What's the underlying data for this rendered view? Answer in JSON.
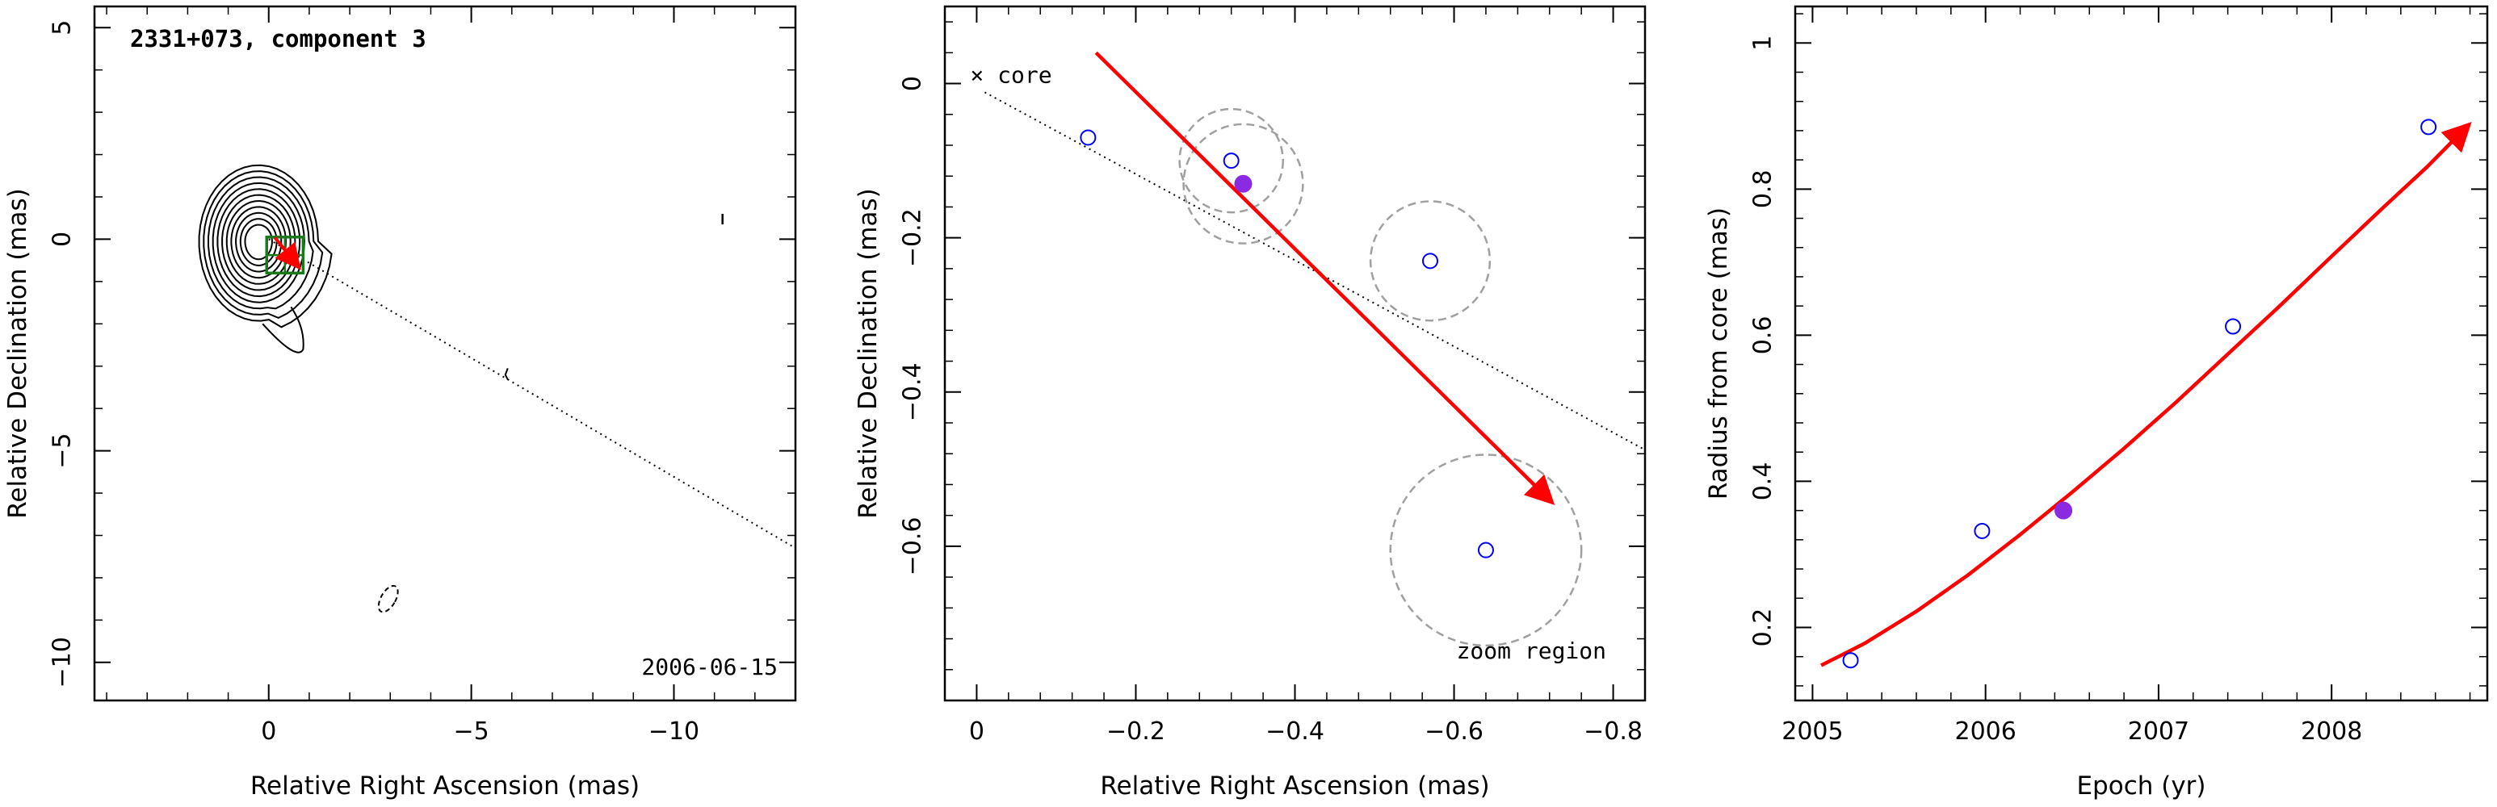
{
  "chart_data": [
    {
      "type": "contour",
      "title": "2331+073, component 3",
      "date_label": "2006-06-15",
      "xlabel": "Relative Right Ascension (mas)",
      "ylabel": "Relative Declination (mas)",
      "xlim": [
        4.3,
        -13.0
      ],
      "ylim": [
        -10.9,
        5.5
      ],
      "xticks": [
        0,
        -5,
        -10
      ],
      "xtick_labels": [
        "0",
        "−5",
        "−10"
      ],
      "yticks": [
        5,
        0,
        -5,
        -10
      ],
      "ytick_labels": [
        "5",
        "0",
        "−5",
        "−10"
      ],
      "contour_center": [
        0.25,
        -0.05
      ],
      "contour_levels": 11,
      "zoom_box": {
        "x": [
          0.05,
          -0.85
        ],
        "y": [
          0.05,
          -0.8
        ]
      },
      "jet_direction_line": {
        "from": [
          0.0,
          0.0
        ],
        "to": [
          -13.0,
          -7.3
        ]
      },
      "motion_arrow": {
        "from": [
          -0.15,
          0.04
        ],
        "to": [
          -0.7,
          -0.61
        ]
      },
      "colors": {
        "contour": "#000000",
        "zoom_box": "#1a7a1a",
        "arrow": "#ff0000"
      }
    },
    {
      "type": "scatter",
      "annotations": {
        "core": "× core",
        "zoom": "zoom region"
      },
      "xlabel": "Relative Right Ascension (mas)",
      "ylabel": "Relative Declination (mas)",
      "xlim": [
        0.04,
        -0.84
      ],
      "ylim": [
        -0.8,
        0.1
      ],
      "xticks": [
        0,
        -0.2,
        -0.4,
        -0.6,
        -0.8
      ],
      "xtick_labels": [
        "0",
        "−0.2",
        "−0.4",
        "−0.6",
        "−0.8"
      ],
      "yticks": [
        0,
        -0.2,
        -0.4,
        -0.6
      ],
      "ytick_labels": [
        "0",
        "−0.2",
        "−0.4",
        "−0.6"
      ],
      "points": [
        {
          "x": -0.14,
          "y": -0.07,
          "filled": false,
          "error_radius": null
        },
        {
          "x": -0.32,
          "y": -0.1,
          "filled": false,
          "error_radius": 0.065
        },
        {
          "x": -0.335,
          "y": -0.13,
          "filled": true,
          "error_radius": 0.075
        },
        {
          "x": -0.57,
          "y": -0.23,
          "filled": false,
          "error_radius": 0.075
        },
        {
          "x": -0.64,
          "y": -0.605,
          "filled": false,
          "error_radius": 0.12
        }
      ],
      "core_marker": {
        "x": 0.0,
        "y": -0.005
      },
      "jet_direction_line": {
        "from": [
          0.0,
          -0.005
        ],
        "to": [
          -0.84,
          -0.475
        ]
      },
      "motion_arrow": {
        "from": [
          -0.15,
          0.04
        ],
        "to": [
          -0.72,
          -0.54
        ]
      },
      "colors": {
        "open_point": "#0000ff",
        "filled_point": "#8a2be2",
        "error_circle": "#a0a0a0",
        "arrow": "#ff0000"
      }
    },
    {
      "type": "scatter",
      "xlabel": "Epoch (yr)",
      "ylabel": "Radius from core (mas)",
      "xlim": [
        2004.9,
        2008.9
      ],
      "ylim": [
        0.1,
        1.05
      ],
      "xticks": [
        2005,
        2006,
        2007,
        2008
      ],
      "xtick_labels": [
        "2005",
        "2006",
        "2007",
        "2008"
      ],
      "yticks": [
        0.2,
        0.4,
        0.6,
        0.8,
        1.0
      ],
      "ytick_labels": [
        "0.2",
        "0.4",
        "0.6",
        "0.8",
        "1"
      ],
      "points": [
        {
          "x": 2005.22,
          "y": 0.155,
          "filled": false
        },
        {
          "x": 2005.98,
          "y": 0.332,
          "filled": false
        },
        {
          "x": 2006.45,
          "y": 0.36,
          "filled": true
        },
        {
          "x": 2007.43,
          "y": 0.612,
          "filled": false
        },
        {
          "x": 2008.56,
          "y": 0.885,
          "filled": false
        }
      ],
      "fit_curve": {
        "x": [
          2005.05,
          2005.3,
          2005.6,
          2005.9,
          2006.2,
          2006.5,
          2006.8,
          2007.1,
          2007.4,
          2007.7,
          2008.0,
          2008.3,
          2008.55,
          2008.78
        ],
        "y": [
          0.148,
          0.178,
          0.222,
          0.272,
          0.327,
          0.385,
          0.445,
          0.508,
          0.574,
          0.64,
          0.708,
          0.775,
          0.83,
          0.885
        ]
      },
      "colors": {
        "open_point": "#0000ff",
        "filled_point": "#8a2be2",
        "fit": "#ff0000"
      }
    }
  ]
}
